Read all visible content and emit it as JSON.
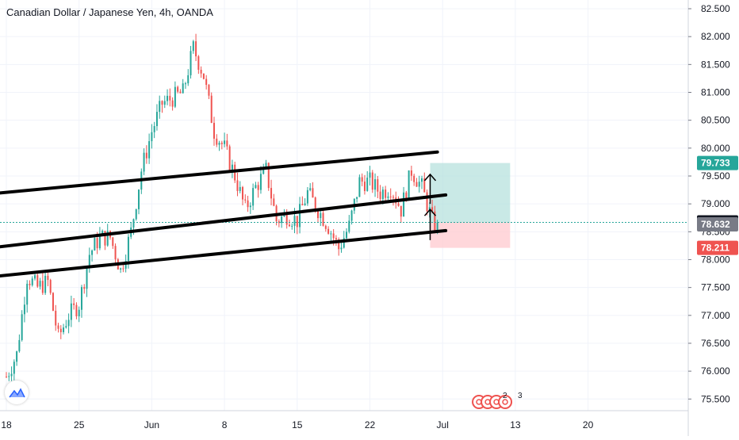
{
  "chart_data": {
    "type": "candlestick",
    "title": "Canadian Dollar / Japanese Yen, 4h, OANDA",
    "y_axis": {
      "ylim": [
        75.3,
        82.6
      ],
      "tick_labels": [
        "82.500",
        "82.000",
        "81.500",
        "81.000",
        "80.500",
        "80.000",
        "79.500",
        "79.000",
        "78.500",
        "78.000",
        "77.500",
        "77.000",
        "76.500",
        "76.000",
        "75.500"
      ]
    },
    "x_axis": {
      "tick_labels": [
        "18",
        "25",
        "Jun",
        "8",
        "15",
        "22",
        "Jul",
        "13",
        "20"
      ],
      "tick_days": [
        0,
        7,
        14,
        21,
        28,
        35,
        42,
        49,
        56
      ]
    },
    "price_path": [
      [
        0,
        75.9
      ],
      [
        1,
        76.3
      ],
      [
        2,
        77.7
      ],
      [
        3,
        77.5
      ],
      [
        4,
        77.6
      ],
      [
        5,
        76.6
      ],
      [
        6,
        77.0
      ],
      [
        7,
        77.2
      ],
      [
        8,
        78.1
      ],
      [
        9,
        78.4
      ],
      [
        10,
        78.4
      ],
      [
        11,
        77.8
      ],
      [
        12,
        78.5
      ],
      [
        13,
        79.6
      ],
      [
        14,
        80.3
      ],
      [
        15,
        80.8
      ],
      [
        16,
        80.9
      ],
      [
        17,
        81.0
      ],
      [
        18,
        81.8
      ],
      [
        19,
        81.3
      ],
      [
        20,
        80.3
      ],
      [
        21,
        80.0
      ],
      [
        22,
        79.5
      ],
      [
        23,
        78.9
      ],
      [
        24,
        79.3
      ],
      [
        25,
        79.6
      ],
      [
        26,
        78.7
      ],
      [
        27,
        78.8
      ],
      [
        28,
        78.7
      ],
      [
        29,
        79.2
      ],
      [
        30,
        78.9
      ],
      [
        31,
        78.6
      ],
      [
        32,
        78.2
      ],
      [
        33,
        78.6
      ],
      [
        34,
        79.4
      ],
      [
        35,
        79.4
      ],
      [
        36,
        79.2
      ],
      [
        37,
        79.3
      ],
      [
        38,
        78.9
      ],
      [
        39,
        79.6
      ],
      [
        40,
        79.3
      ],
      [
        41,
        78.7
      ],
      [
        41.5,
        78.56
      ]
    ],
    "channel_lines": [
      {
        "name": "upper",
        "start": [
          -9,
          79.05
        ],
        "end": [
          41.5,
          79.93
        ]
      },
      {
        "name": "middle",
        "start": [
          -9,
          78.05
        ],
        "end": [
          42.3,
          79.16
        ]
      },
      {
        "name": "lower",
        "start": [
          -9,
          77.55
        ],
        "end": [
          42.3,
          78.52
        ]
      }
    ],
    "arrows": [
      {
        "x": 40.8,
        "from": 79.0,
        "to": 79.53
      },
      {
        "x": 40.8,
        "from": 78.35,
        "to": 78.9
      }
    ],
    "position": {
      "x_start": 40.8,
      "x_end": 48.5,
      "entry": 78.668,
      "target": 79.733,
      "stop": 78.211
    },
    "price_labels": [
      {
        "value": 79.733,
        "label": "79.733",
        "color": "#26a69a"
      },
      {
        "value": 78.668,
        "label": "78.668",
        "color": "#131722"
      },
      {
        "value": 78.632,
        "label": "78.632",
        "color": "#787b86"
      },
      {
        "value": 78.211,
        "label": "78.211",
        "color": "#ef5350"
      }
    ],
    "current_price_line": 78.668,
    "event_badges": [
      "2",
      "3"
    ],
    "colors": {
      "up": "#26a69a",
      "down": "#ef5350",
      "channel": "#000000",
      "target_zone": "#b2dfdb",
      "stop_zone": "#ffcdd2",
      "grid": "#f0f3fa",
      "axis_text": "#131722"
    },
    "grid": true
  }
}
